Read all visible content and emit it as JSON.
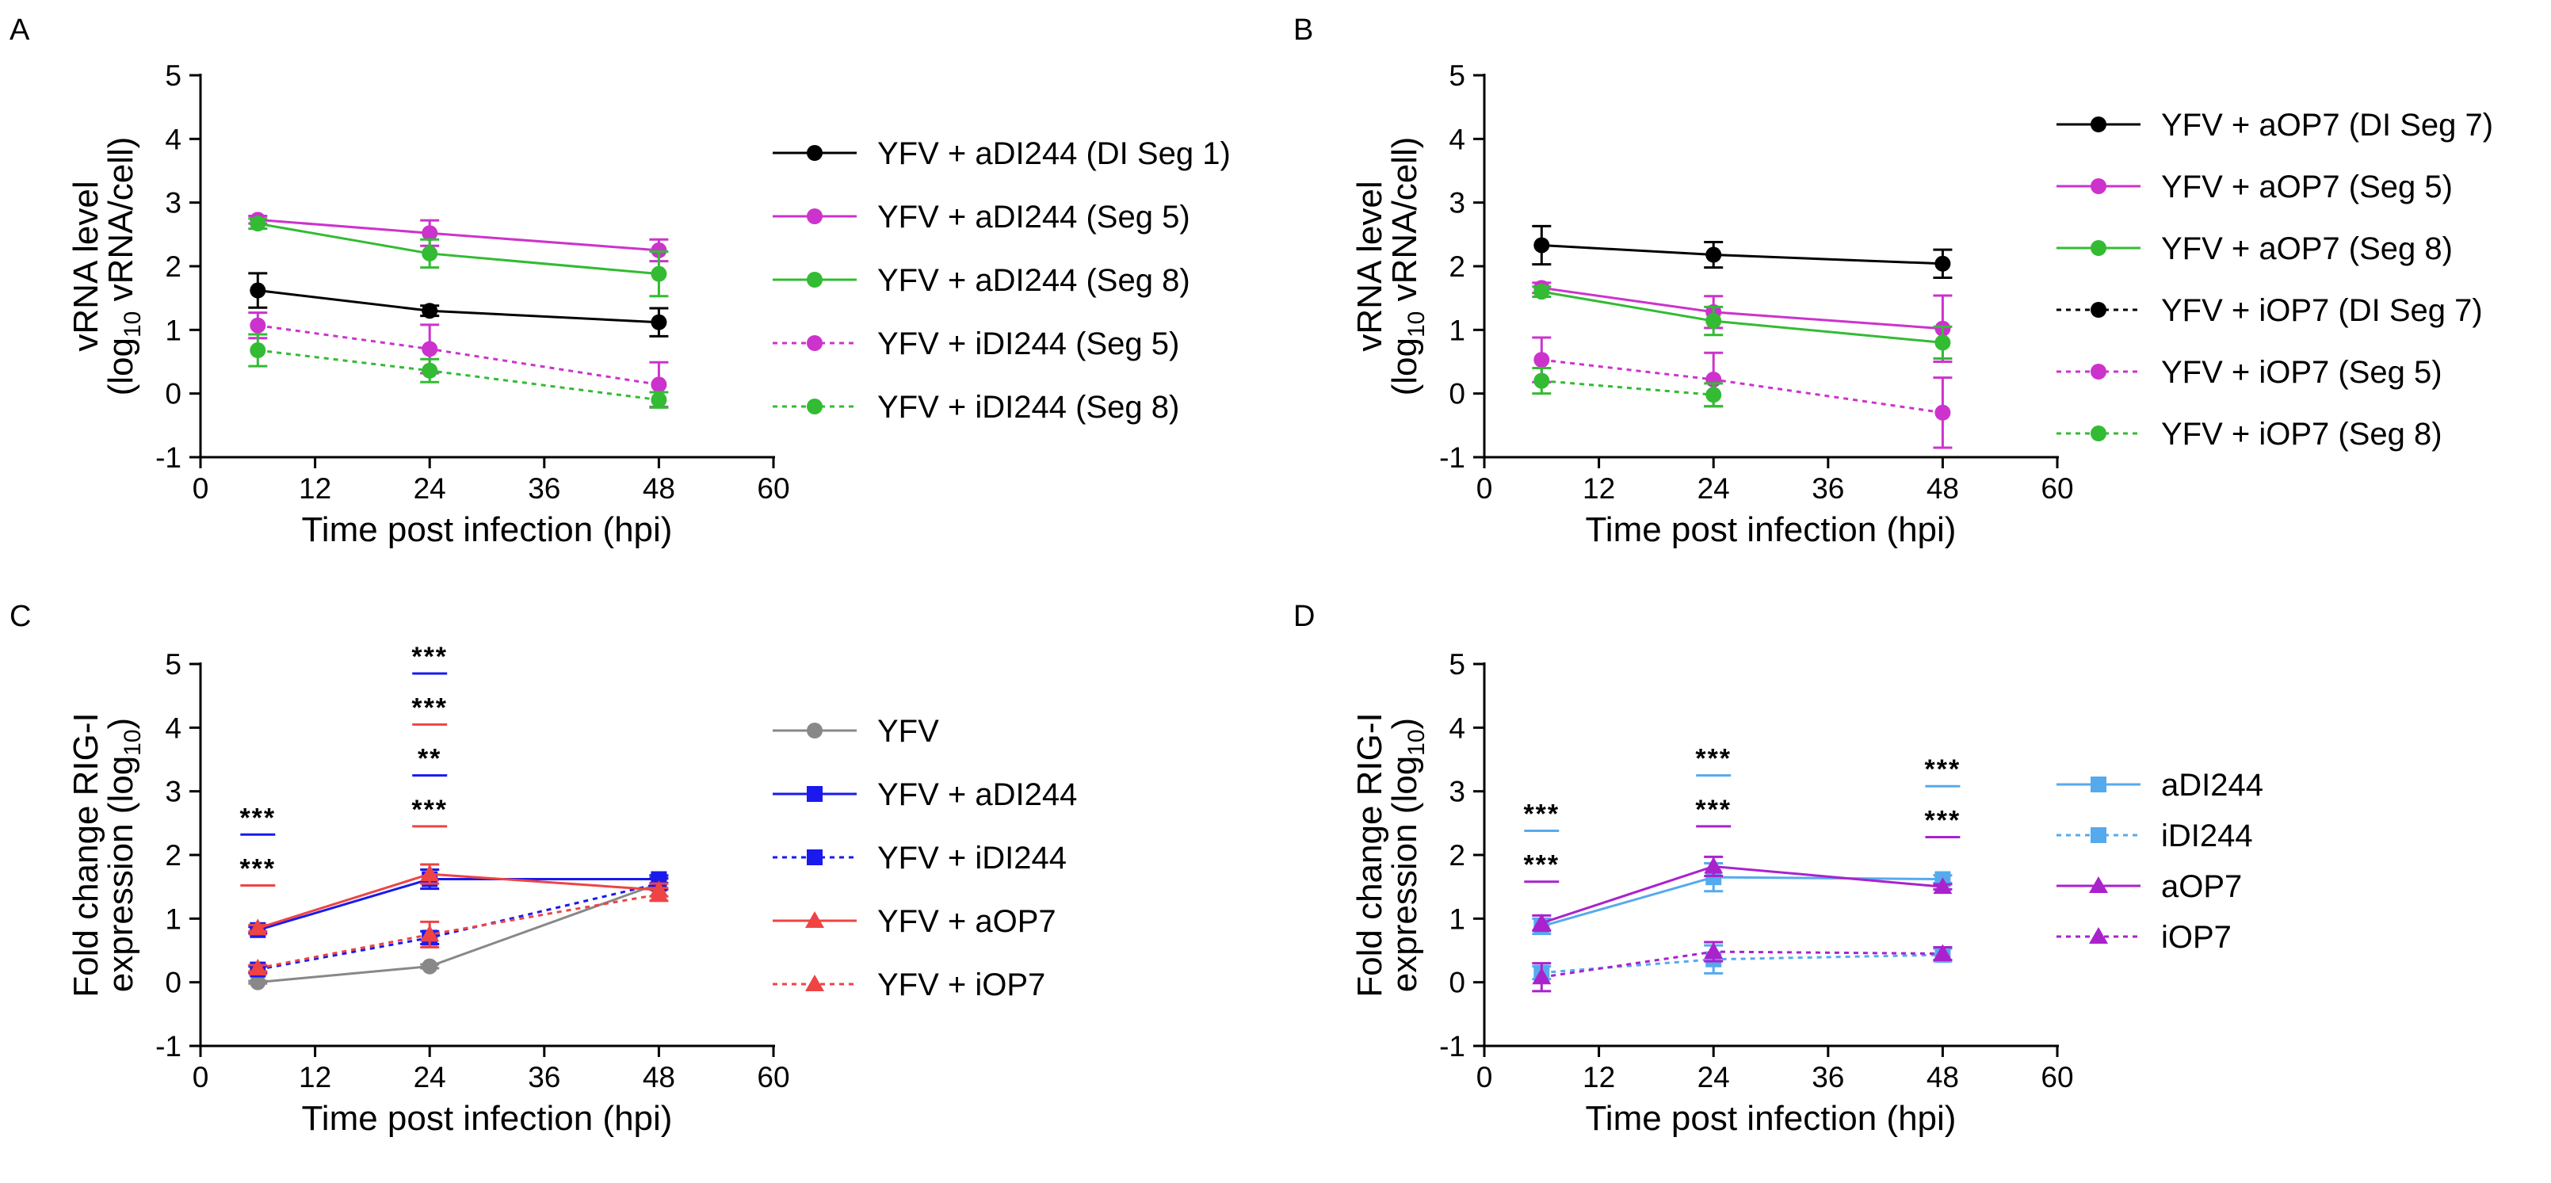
{
  "chart_data": [
    {
      "panel": "A",
      "type": "line",
      "title": "",
      "ylabel_line1": "vRNA level",
      "ylabel_line2_pre": "(log",
      "ylabel_line2_sub": "10",
      "ylabel_line2_post": " vRNA/cell)",
      "xlabel": "Time post infection (hpi)",
      "xlim": [
        0,
        60
      ],
      "ylim": [
        -1,
        5
      ],
      "xticks": [
        0,
        12,
        24,
        36,
        48,
        60
      ],
      "yticks": [
        -1,
        0,
        1,
        2,
        3,
        4,
        5
      ],
      "xticklabels": [
        "0",
        "12",
        "24",
        "36",
        "48",
        "60"
      ],
      "yticklabels": [
        "-1",
        "0",
        "1",
        "2",
        "3",
        "4",
        "5"
      ],
      "legend_position": "right",
      "series": [
        {
          "name": "YFV + aDI244 (DI Seg 1)",
          "color": "#000000",
          "dash": false,
          "marker": "circle",
          "x": [
            6,
            24,
            48
          ],
          "y": [
            1.62,
            1.3,
            1.12
          ],
          "err": [
            0.27,
            0.08,
            0.22
          ]
        },
        {
          "name": "YFV + aDI244 (Seg 5)",
          "color": "#cc33cc",
          "dash": false,
          "marker": "circle",
          "x": [
            6,
            24,
            48
          ],
          "y": [
            2.73,
            2.52,
            2.25
          ],
          "err": [
            0.06,
            0.2,
            0.17
          ]
        },
        {
          "name": "YFV + aDI244 (Seg 8)",
          "color": "#33bb33",
          "dash": false,
          "marker": "circle",
          "x": [
            6,
            24,
            48
          ],
          "y": [
            2.67,
            2.2,
            1.88
          ],
          "err": [
            0.08,
            0.22,
            0.35
          ]
        },
        {
          "name": "YFV + iDI244 (Seg 5)",
          "color": "#cc33cc",
          "dash": true,
          "marker": "circle",
          "x": [
            6,
            24,
            48
          ],
          "y": [
            1.07,
            0.7,
            0.14
          ],
          "err": [
            0.2,
            0.38,
            0.35
          ]
        },
        {
          "name": "YFV + iDI244 (Seg 8)",
          "color": "#33bb33",
          "dash": true,
          "marker": "circle",
          "x": [
            6,
            24,
            48
          ],
          "y": [
            0.68,
            0.36,
            -0.1
          ],
          "err": [
            0.25,
            0.18,
            0.12
          ]
        }
      ],
      "annotations": []
    },
    {
      "panel": "B",
      "type": "line",
      "title": "",
      "ylabel_line1": "vRNA level",
      "ylabel_line2_pre": "(log",
      "ylabel_line2_sub": "10",
      "ylabel_line2_post": " vRNA/cell)",
      "xlabel": "Time post infection (hpi)",
      "xlim": [
        0,
        60
      ],
      "ylim": [
        -1,
        5
      ],
      "xticks": [
        0,
        12,
        24,
        36,
        48,
        60
      ],
      "yticks": [
        -1,
        0,
        1,
        2,
        3,
        4,
        5
      ],
      "xticklabels": [
        "0",
        "12",
        "24",
        "36",
        "48",
        "60"
      ],
      "yticklabels": [
        "-1",
        "0",
        "1",
        "2",
        "3",
        "4",
        "5"
      ],
      "legend_position": "right",
      "series": [
        {
          "name": "YFV + aOP7 (DI Seg 7)",
          "color": "#000000",
          "dash": false,
          "marker": "circle",
          "x": [
            6,
            24,
            48
          ],
          "y": [
            2.33,
            2.18,
            2.04
          ],
          "err": [
            0.3,
            0.2,
            0.22
          ]
        },
        {
          "name": "YFV + aOP7 (Seg 5)",
          "color": "#cc33cc",
          "dash": false,
          "marker": "circle",
          "x": [
            6,
            24,
            48
          ],
          "y": [
            1.66,
            1.28,
            1.02
          ],
          "err": [
            0.08,
            0.25,
            0.52
          ]
        },
        {
          "name": "YFV + aOP7 (Seg 8)",
          "color": "#33bb33",
          "dash": false,
          "marker": "circle",
          "x": [
            6,
            24,
            48
          ],
          "y": [
            1.6,
            1.14,
            0.8
          ],
          "err": [
            0.08,
            0.22,
            0.25
          ]
        },
        {
          "name": "YFV + iOP7 (DI Seg 7)",
          "color": "#000000",
          "dash": true,
          "marker": "circle",
          "x": [],
          "y": [],
          "err": []
        },
        {
          "name": "YFV + iOP7 (Seg 5)",
          "color": "#cc33cc",
          "dash": true,
          "marker": "circle",
          "x": [
            6,
            24,
            48
          ],
          "y": [
            0.53,
            0.22,
            -0.3
          ],
          "err": [
            0.35,
            0.42,
            0.55
          ]
        },
        {
          "name": "YFV + iOP7 (Seg 8)",
          "color": "#33bb33",
          "dash": true,
          "marker": "circle",
          "x": [
            6,
            24
          ],
          "y": [
            0.2,
            -0.02
          ],
          "err": [
            0.2,
            0.18
          ]
        }
      ],
      "annotations": []
    },
    {
      "panel": "C",
      "type": "line",
      "title": "",
      "ylabel_line1": "Fold change RIG-I",
      "ylabel_line2_pre": "expression (log",
      "ylabel_line2_sub": "10",
      "ylabel_line2_post": ")",
      "xlabel": "Time post infection (hpi)",
      "xlim": [
        0,
        60
      ],
      "ylim": [
        -1,
        5
      ],
      "xticks": [
        0,
        12,
        24,
        36,
        48,
        60
      ],
      "yticks": [
        -1,
        0,
        1,
        2,
        3,
        4,
        5
      ],
      "xticklabels": [
        "0",
        "12",
        "24",
        "36",
        "48",
        "60"
      ],
      "yticklabels": [
        "-1",
        "0",
        "1",
        "2",
        "3",
        "4",
        "5"
      ],
      "legend_position": "right",
      "series": [
        {
          "name": "YFV",
          "color": "#888888",
          "dash": false,
          "marker": "circle",
          "x": [
            6,
            24,
            48
          ],
          "y": [
            0.0,
            0.25,
            1.55
          ],
          "err": [
            0.02,
            0.03,
            0.1
          ]
        },
        {
          "name": "YFV + aDI244",
          "color": "#1a1aee",
          "dash": false,
          "marker": "square",
          "x": [
            6,
            24,
            48
          ],
          "y": [
            0.82,
            1.62,
            1.62
          ],
          "err": [
            0.05,
            0.15,
            0.06
          ]
        },
        {
          "name": "YFV + iDI244",
          "color": "#1a1aee",
          "dash": true,
          "marker": "square",
          "x": [
            6,
            24,
            48
          ],
          "y": [
            0.2,
            0.7,
            1.55
          ],
          "err": [
            0.05,
            0.1,
            0.08
          ]
        },
        {
          "name": "YFV + aOP7",
          "color": "#ee4444",
          "dash": false,
          "marker": "triangle",
          "x": [
            6,
            24,
            48
          ],
          "y": [
            0.85,
            1.7,
            1.45
          ],
          "err": [
            0.05,
            0.15,
            0.1
          ]
        },
        {
          "name": "YFV + iOP7",
          "color": "#ee4444",
          "dash": true,
          "marker": "triangle",
          "x": [
            6,
            24,
            48
          ],
          "y": [
            0.22,
            0.75,
            1.38
          ],
          "err": [
            0.05,
            0.2,
            0.1
          ]
        }
      ],
      "annotations": [
        {
          "x": 6,
          "y": 2.32,
          "text": "***",
          "color": "#1a1aee"
        },
        {
          "x": 6,
          "y": 1.52,
          "text": "***",
          "color": "#ee4444"
        },
        {
          "x": 24,
          "y": 4.85,
          "text": "***",
          "color": "#1a1aee"
        },
        {
          "x": 24,
          "y": 4.05,
          "text": "***",
          "color": "#ee4444"
        },
        {
          "x": 24,
          "y": 3.25,
          "text": "**",
          "color": "#1a1aee"
        },
        {
          "x": 24,
          "y": 2.45,
          "text": "***",
          "color": "#ee4444"
        }
      ]
    },
    {
      "panel": "D",
      "type": "line",
      "title": "",
      "ylabel_line1": "Fold change RIG-I",
      "ylabel_line2_pre": "expression (log",
      "ylabel_line2_sub": "10",
      "ylabel_line2_post": ")",
      "xlabel": "Time post infection (hpi)",
      "xlim": [
        0,
        60
      ],
      "ylim": [
        -1,
        5
      ],
      "xticks": [
        0,
        12,
        24,
        36,
        48,
        60
      ],
      "yticks": [
        -1,
        0,
        1,
        2,
        3,
        4,
        5
      ],
      "xticklabels": [
        "0",
        "12",
        "24",
        "36",
        "48",
        "60"
      ],
      "yticklabels": [
        "-1",
        "0",
        "1",
        "2",
        "3",
        "4",
        "5"
      ],
      "legend_position": "right",
      "series": [
        {
          "name": "aDI244",
          "color": "#55aaee",
          "dash": false,
          "marker": "square",
          "x": [
            6,
            24,
            48
          ],
          "y": [
            0.88,
            1.65,
            1.62
          ],
          "err": [
            0.12,
            0.22,
            0.06
          ]
        },
        {
          "name": "iDI244",
          "color": "#55aaee",
          "dash": true,
          "marker": "square",
          "x": [
            6,
            24,
            48
          ],
          "y": [
            0.15,
            0.36,
            0.43
          ],
          "err": [
            0.1,
            0.22,
            0.1
          ]
        },
        {
          "name": "aOP7",
          "color": "#aa22cc",
          "dash": false,
          "marker": "triangle",
          "x": [
            6,
            24,
            48
          ],
          "y": [
            0.93,
            1.82,
            1.5
          ],
          "err": [
            0.12,
            0.15,
            0.04
          ]
        },
        {
          "name": "iOP7",
          "color": "#aa22cc",
          "dash": true,
          "marker": "triangle",
          "x": [
            6,
            24,
            48
          ],
          "y": [
            0.08,
            0.48,
            0.45
          ],
          "err": [
            0.22,
            0.15,
            0.1
          ]
        }
      ],
      "annotations": [
        {
          "x": 6,
          "y": 2.38,
          "text": "***",
          "color": "#55aaee"
        },
        {
          "x": 6,
          "y": 1.58,
          "text": "***",
          "color": "#aa22cc"
        },
        {
          "x": 24,
          "y": 3.25,
          "text": "***",
          "color": "#55aaee"
        },
        {
          "x": 24,
          "y": 2.45,
          "text": "***",
          "color": "#aa22cc"
        },
        {
          "x": 48,
          "y": 3.08,
          "text": "***",
          "color": "#55aaee"
        },
        {
          "x": 48,
          "y": 2.28,
          "text": "***",
          "color": "#aa22cc"
        }
      ]
    }
  ]
}
